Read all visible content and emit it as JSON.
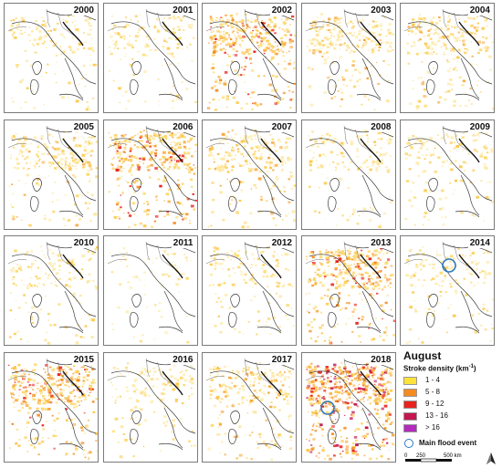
{
  "panels": [
    {
      "year": "2000",
      "level": 1
    },
    {
      "year": "2001",
      "level": 1
    },
    {
      "year": "2002",
      "level": 3
    },
    {
      "year": "2003",
      "level": 2
    },
    {
      "year": "2004",
      "level": 2
    },
    {
      "year": "2005",
      "level": 2
    },
    {
      "year": "2006",
      "level": 3
    },
    {
      "year": "2007",
      "level": 2
    },
    {
      "year": "2008",
      "level": 1
    },
    {
      "year": "2009",
      "level": 1
    },
    {
      "year": "2010",
      "level": 1
    },
    {
      "year": "2011",
      "level": 0
    },
    {
      "year": "2012",
      "level": 1
    },
    {
      "year": "2013",
      "level": 3
    },
    {
      "year": "2014",
      "level": 1,
      "flood": true
    },
    {
      "year": "2015",
      "level": 3
    },
    {
      "year": "2016",
      "level": 1
    },
    {
      "year": "2017",
      "level": 2
    },
    {
      "year": "2018",
      "level": 4,
      "flood": true
    }
  ],
  "legend": {
    "title": "August",
    "subtitle": "Stroke density (km",
    "subtitle_exp": "-1",
    "subtitle_end": ")",
    "classes": [
      {
        "label": "1 - 4",
        "color": "#fde23a"
      },
      {
        "label": "5 - 8",
        "color": "#f58a1f"
      },
      {
        "label": "9 - 12",
        "color": "#e8231f"
      },
      {
        "label": "13 - 16",
        "color": "#c4174f"
      },
      {
        "label": "> 16",
        "color": "#b32abc"
      }
    ],
    "flood_label": "Main flood event",
    "flood_color": "#2a7ac0",
    "scale": {
      "t0": "0",
      "t1": "250",
      "t2": "500 km"
    }
  }
}
